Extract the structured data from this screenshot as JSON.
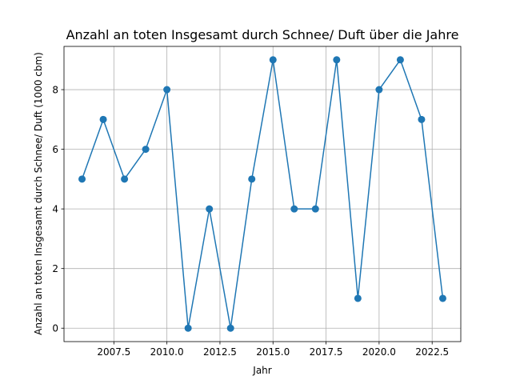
{
  "chart_data": {
    "type": "line",
    "title": "Anzahl an toten Insgesamt durch Schnee/ Duft über die Jahre",
    "xlabel": "Jahr",
    "ylabel": "Anzahl an toten Insgesamt durch Schnee/ Duft (1000 cbm)",
    "x": [
      2006,
      2007,
      2008,
      2009,
      2010,
      2011,
      2012,
      2013,
      2014,
      2015,
      2016,
      2017,
      2018,
      2019,
      2020,
      2021,
      2022,
      2023
    ],
    "series": [
      {
        "values": [
          5,
          7,
          5,
          6,
          8,
          0,
          4,
          0,
          5,
          9,
          4,
          4,
          9,
          1,
          8,
          9,
          7,
          1
        ]
      }
    ],
    "xlim": [
      2005.15,
      2023.85
    ],
    "ylim": [
      -0.45,
      9.45
    ],
    "xticks": [
      2007.5,
      2010.0,
      2012.5,
      2015.0,
      2017.5,
      2020.0,
      2022.5
    ],
    "xtick_labels": [
      "2007.5",
      "2010.0",
      "2012.5",
      "2015.0",
      "2017.5",
      "2020.0",
      "2022.5"
    ],
    "yticks": [
      0,
      2,
      4,
      6,
      8
    ],
    "ytick_labels": [
      "0",
      "2",
      "4",
      "6",
      "8"
    ],
    "grid": true,
    "color": "#1f77b4"
  }
}
